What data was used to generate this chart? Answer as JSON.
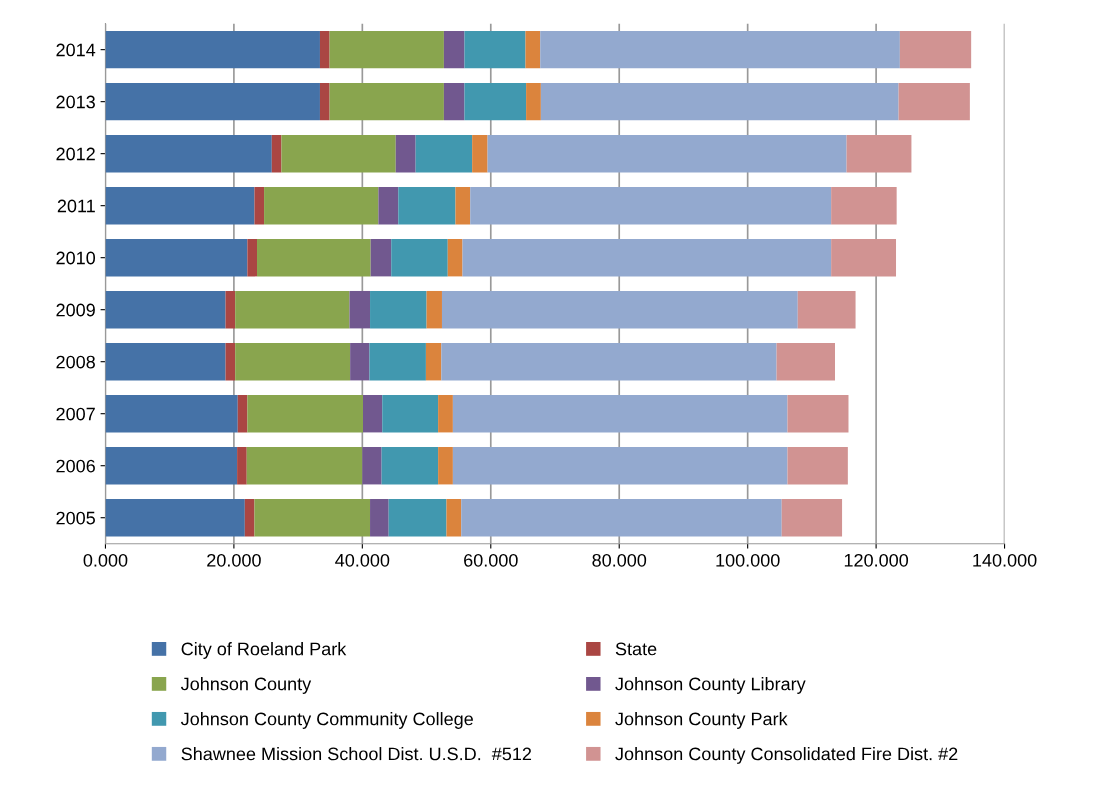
{
  "chart_data": {
    "type": "bar",
    "orientation": "horizontal",
    "stacked": true,
    "categories": [
      "2014",
      "2013",
      "2012",
      "2011",
      "2010",
      "2009",
      "2008",
      "2007",
      "2006",
      "2005"
    ],
    "series": [
      {
        "name": "City of Roeland Park",
        "color": "#4572a7",
        "values": [
          33.4,
          33.4,
          25.9,
          23.2,
          22.1,
          18.7,
          18.7,
          20.6,
          20.5,
          21.7
        ]
      },
      {
        "name": "State",
        "color": "#aa4643",
        "values": [
          1.5,
          1.5,
          1.5,
          1.5,
          1.5,
          1.5,
          1.5,
          1.5,
          1.5,
          1.5
        ]
      },
      {
        "name": "Johnson County",
        "color": "#89a54e",
        "values": [
          17.8,
          17.8,
          17.8,
          17.8,
          17.7,
          17.8,
          17.9,
          18.0,
          18.0,
          18.0
        ]
      },
      {
        "name": "Johnson County Library",
        "color": "#71588f",
        "values": [
          3.2,
          3.2,
          3.1,
          3.1,
          3.2,
          3.2,
          3.0,
          3.0,
          3.0,
          2.9
        ]
      },
      {
        "name": "Johnson County Community College",
        "color": "#4198af",
        "values": [
          9.5,
          9.6,
          8.8,
          8.9,
          8.8,
          8.8,
          8.8,
          8.7,
          8.8,
          9.0
        ]
      },
      {
        "name": "Johnson County Park",
        "color": "#db843d",
        "values": [
          2.3,
          2.3,
          2.4,
          2.3,
          2.3,
          2.4,
          2.4,
          2.3,
          2.3,
          2.3
        ]
      },
      {
        "name": "Shawnee Mission School Dist. U.S.D.  #512",
        "color": "#93a9cf",
        "values": [
          56.0,
          55.7,
          55.9,
          56.2,
          57.4,
          55.4,
          52.2,
          52.1,
          52.1,
          49.9
        ]
      },
      {
        "name": "Johnson County Consolidated Fire Dist. #2",
        "color": "#d19392",
        "values": [
          11.1,
          11.1,
          10.1,
          10.2,
          10.1,
          9.0,
          9.1,
          9.5,
          9.4,
          9.4
        ]
      }
    ],
    "xlim": [
      0,
      140
    ],
    "xticks": [
      {
        "value": 0,
        "label": "0.000"
      },
      {
        "value": 20,
        "label": "20.000"
      },
      {
        "value": 40,
        "label": "40.000"
      },
      {
        "value": 60,
        "label": "60.000"
      },
      {
        "value": 80,
        "label": "80.000"
      },
      {
        "value": 100,
        "label": "100.000"
      },
      {
        "value": 120,
        "label": "120.000"
      },
      {
        "value": 140,
        "label": "140.000"
      }
    ],
    "grid": "x",
    "legend": "bottom"
  }
}
